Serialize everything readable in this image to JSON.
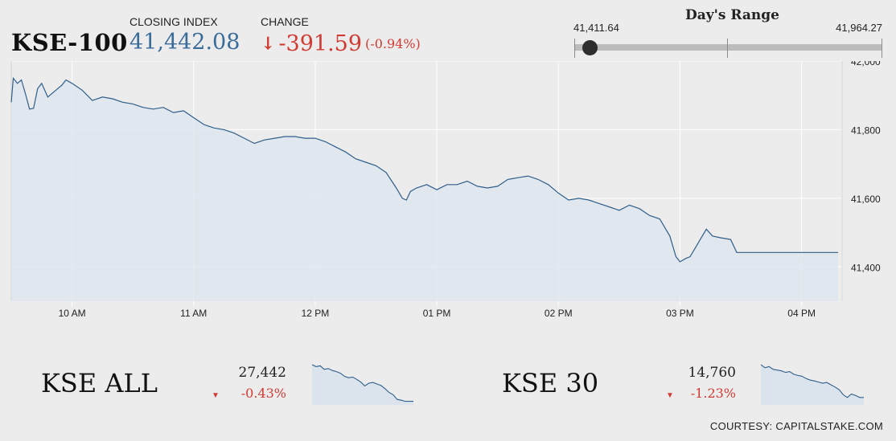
{
  "header": {
    "index_name": "KSE-100",
    "closing_label": "CLOSING INDEX",
    "closing_value": "41,442.08",
    "change_label": "CHANGE",
    "change_arrow": "↓",
    "change_value": "-391.59",
    "change_pct": "(-0.94%)"
  },
  "days_range": {
    "title": "Day's Range",
    "low": "41,411.64",
    "high": "41,964.27",
    "current": 41442.08
  },
  "colors": {
    "line": "#2f5f8a",
    "area": "#dfe6ee",
    "grid": "#ffffff",
    "positive": "#3a6c9a",
    "negative": "#d13b33"
  },
  "chart_data": [
    {
      "type": "area",
      "name": "KSE-100 intraday",
      "x_unit": "time of day",
      "ylim": [
        41300,
        42000
      ],
      "y_ticks": [
        42000,
        41800,
        41600,
        41400
      ],
      "y_tick_labels": [
        "42,000",
        "41,800",
        "41,600",
        "41,400"
      ],
      "x_ticks": [
        "10:00",
        "11:00",
        "12:00",
        "13:00",
        "14:00",
        "15:00",
        "16:00"
      ],
      "x_tick_labels": [
        "10 AM",
        "11 AM",
        "12 PM",
        "01 PM",
        "02 PM",
        "03 PM",
        "04 PM"
      ],
      "grid": true,
      "points": [
        [
          "09:30",
          41880
        ],
        [
          "09:31",
          41950
        ],
        [
          "09:33",
          41935
        ],
        [
          "09:35",
          41945
        ],
        [
          "09:37",
          41905
        ],
        [
          "09:39",
          41860
        ],
        [
          "09:41",
          41862
        ],
        [
          "09:43",
          41920
        ],
        [
          "09:45",
          41935
        ],
        [
          "09:48",
          41895
        ],
        [
          "09:52",
          41915
        ],
        [
          "09:55",
          41930
        ],
        [
          "09:57",
          41945
        ],
        [
          "10:00",
          41935
        ],
        [
          "10:05",
          41915
        ],
        [
          "10:10",
          41885
        ],
        [
          "10:15",
          41895
        ],
        [
          "10:20",
          41890
        ],
        [
          "10:25",
          41880
        ],
        [
          "10:30",
          41875
        ],
        [
          "10:35",
          41865
        ],
        [
          "10:40",
          41860
        ],
        [
          "10:45",
          41865
        ],
        [
          "10:50",
          41850
        ],
        [
          "10:55",
          41855
        ],
        [
          "11:00",
          41835
        ],
        [
          "11:05",
          41815
        ],
        [
          "11:10",
          41805
        ],
        [
          "11:15",
          41800
        ],
        [
          "11:20",
          41790
        ],
        [
          "11:25",
          41775
        ],
        [
          "11:30",
          41760
        ],
        [
          "11:35",
          41770
        ],
        [
          "11:40",
          41775
        ],
        [
          "11:45",
          41780
        ],
        [
          "11:50",
          41780
        ],
        [
          "11:55",
          41775
        ],
        [
          "12:00",
          41775
        ],
        [
          "12:05",
          41765
        ],
        [
          "12:10",
          41750
        ],
        [
          "12:15",
          41735
        ],
        [
          "12:20",
          41715
        ],
        [
          "12:25",
          41705
        ],
        [
          "12:30",
          41695
        ],
        [
          "12:35",
          41675
        ],
        [
          "12:40",
          41630
        ],
        [
          "12:43",
          41600
        ],
        [
          "12:45",
          41595
        ],
        [
          "12:47",
          41620
        ],
        [
          "12:50",
          41630
        ],
        [
          "12:55",
          41640
        ],
        [
          "13:00",
          41625
        ],
        [
          "13:05",
          41640
        ],
        [
          "13:10",
          41640
        ],
        [
          "13:15",
          41650
        ],
        [
          "13:20",
          41635
        ],
        [
          "13:25",
          41630
        ],
        [
          "13:30",
          41635
        ],
        [
          "13:35",
          41655
        ],
        [
          "13:40",
          41660
        ],
        [
          "13:45",
          41665
        ],
        [
          "13:50",
          41655
        ],
        [
          "13:55",
          41640
        ],
        [
          "14:00",
          41615
        ],
        [
          "14:05",
          41595
        ],
        [
          "14:10",
          41600
        ],
        [
          "14:15",
          41595
        ],
        [
          "14:20",
          41585
        ],
        [
          "14:25",
          41575
        ],
        [
          "14:30",
          41565
        ],
        [
          "14:35",
          41580
        ],
        [
          "14:40",
          41570
        ],
        [
          "14:45",
          41550
        ],
        [
          "14:50",
          41540
        ],
        [
          "14:55",
          41490
        ],
        [
          "14:58",
          41430
        ],
        [
          "15:00",
          41415
        ],
        [
          "15:03",
          41425
        ],
        [
          "15:05",
          41430
        ],
        [
          "15:08",
          41460
        ],
        [
          "15:10",
          41480
        ],
        [
          "15:13",
          41510
        ],
        [
          "15:16",
          41490
        ],
        [
          "15:20",
          41485
        ],
        [
          "15:25",
          41480
        ],
        [
          "15:28",
          41442
        ],
        [
          "15:40",
          41442
        ],
        [
          "16:00",
          41442
        ],
        [
          "16:18",
          41442
        ]
      ]
    },
    {
      "type": "area",
      "name": "KSE ALL",
      "title": "KSE ALL",
      "value": "27,442",
      "change": "-0.43%",
      "values": [
        100,
        95,
        97,
        88,
        90,
        85,
        82,
        78,
        70,
        66,
        68,
        62,
        55,
        45,
        52,
        54,
        50,
        46,
        38,
        28,
        22,
        10,
        8,
        5,
        5,
        5
      ]
    },
    {
      "type": "area",
      "name": "KSE 30",
      "title": "KSE 30",
      "value": "14,760",
      "change": "-1.23%",
      "values": [
        100,
        92,
        95,
        88,
        86,
        84,
        80,
        82,
        75,
        72,
        70,
        64,
        60,
        58,
        55,
        52,
        54,
        48,
        42,
        35,
        22,
        15,
        24,
        20,
        15,
        15
      ]
    }
  ],
  "minis": [
    {
      "name": "KSE ALL",
      "value": "27,442",
      "change": "-0.43%",
      "triangle": "▼"
    },
    {
      "name": "KSE 30",
      "value": "14,760",
      "change": "-1.23%",
      "triangle": "▼"
    }
  ],
  "credit": "COURTESY: CAPITALSTAKE.COM"
}
